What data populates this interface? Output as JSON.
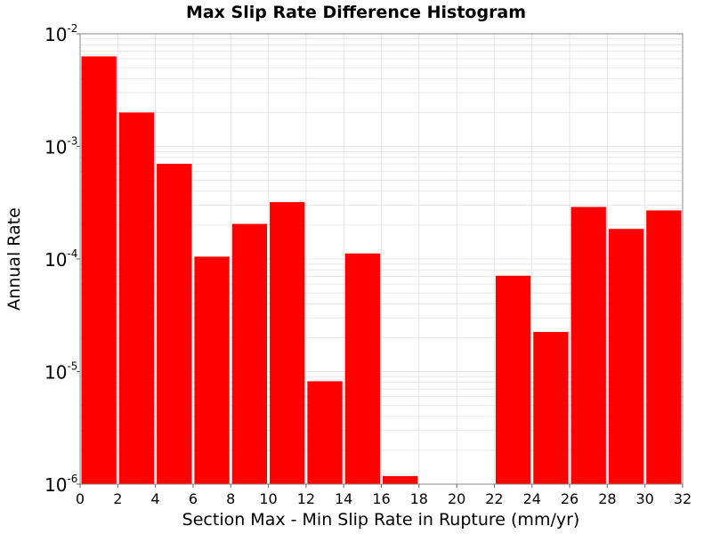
{
  "chart_data": {
    "type": "bar",
    "title": "Max Slip Rate Difference Histogram",
    "xlabel": "Section Max - Min Slip Rate in Rupture (mm/yr)",
    "ylabel": "Annual Rate",
    "xlim": [
      0,
      32
    ],
    "ylim": [
      1e-06,
      0.01
    ],
    "y_scale": "log",
    "bin_width": 2,
    "x_ticks": [
      0,
      2,
      4,
      6,
      8,
      10,
      12,
      14,
      16,
      18,
      20,
      22,
      24,
      26,
      28,
      30,
      32
    ],
    "y_ticks": [
      {
        "value": 1e-06,
        "base": "10",
        "exp": "-6"
      },
      {
        "value": 1e-05,
        "base": "10",
        "exp": "-5"
      },
      {
        "value": 0.0001,
        "base": "10",
        "exp": "-4"
      },
      {
        "value": 0.001,
        "base": "10",
        "exp": "-3"
      },
      {
        "value": 0.01,
        "base": "10",
        "exp": "-2"
      }
    ],
    "bars": [
      {
        "x": 1,
        "value": 0.0063
      },
      {
        "x": 3,
        "value": 0.002
      },
      {
        "x": 5,
        "value": 0.0007
      },
      {
        "x": 7,
        "value": 0.000105
      },
      {
        "x": 9,
        "value": 0.000205
      },
      {
        "x": 11,
        "value": 0.00032
      },
      {
        "x": 13,
        "value": 8.2e-06
      },
      {
        "x": 15,
        "value": 0.000112
      },
      {
        "x": 17,
        "value": 1.18e-06
      },
      {
        "x": 19,
        "value": 0
      },
      {
        "x": 21,
        "value": 0
      },
      {
        "x": 23,
        "value": 7.1e-05
      },
      {
        "x": 25,
        "value": 2.25e-05
      },
      {
        "x": 27,
        "value": 0.00029
      },
      {
        "x": 29,
        "value": 0.000185
      },
      {
        "x": 31,
        "value": 0.00027
      }
    ],
    "bar_color": "#ff0000",
    "grid": true,
    "grid_color": "#e6e6e6"
  }
}
